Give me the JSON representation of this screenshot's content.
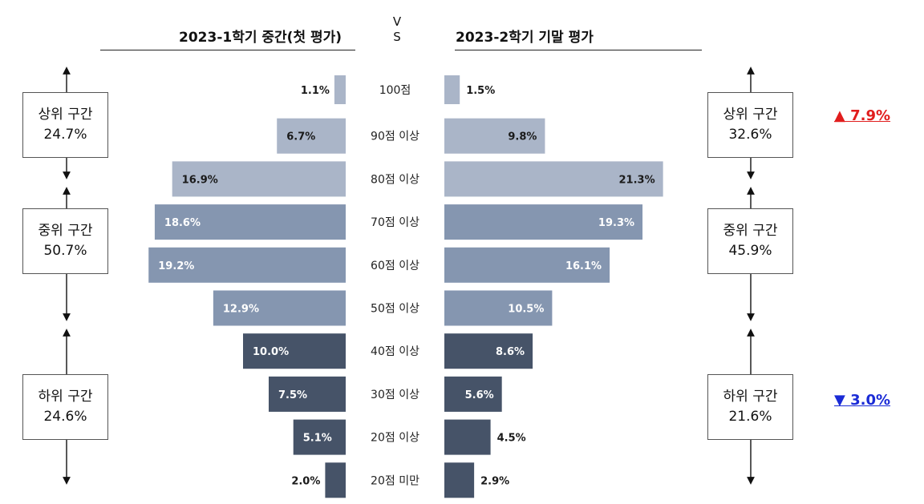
{
  "header": {
    "left_title": "2023-1학기 중간(첫 평가)",
    "right_title": "2023-2학기 기말 평가",
    "vs_top": "V",
    "vs_bottom": "S"
  },
  "groups_left": [
    {
      "label": "상위 구간",
      "value": "24.7%"
    },
    {
      "label": "중위 구간",
      "value": "50.7%"
    },
    {
      "label": "하위 구간",
      "value": "24.6%"
    }
  ],
  "groups_right": [
    {
      "label": "상위 구간",
      "value": "32.6%"
    },
    {
      "label": "중위 구간",
      "value": "45.9%"
    },
    {
      "label": "하위 구간",
      "value": "21.6%"
    }
  ],
  "changes": {
    "top": {
      "text": "▲ 7.9%",
      "color": "#e11d1d"
    },
    "bottom": {
      "text": "▼ 3.0%",
      "color": "#1a2bd6"
    }
  },
  "chart_data": {
    "type": "bar",
    "orientation": "horizontal-butterfly",
    "categories": [
      "100점",
      "90점 이상",
      "80점 이상",
      "70점 이상",
      "60점 이상",
      "50점 이상",
      "40점 이상",
      "30점 이상",
      "20점 이상",
      "20점 미만"
    ],
    "series": [
      {
        "name": "2023-1학기 중간(첫 평가)",
        "values": [
          1.1,
          6.7,
          16.9,
          18.6,
          19.2,
          12.9,
          10.0,
          7.5,
          5.1,
          2.0
        ]
      },
      {
        "name": "2023-2학기 기말 평가",
        "values": [
          1.5,
          9.8,
          21.3,
          19.3,
          16.1,
          10.5,
          8.6,
          5.6,
          4.5,
          2.9
        ]
      }
    ],
    "value_labels": {
      "left": [
        "1.1%",
        "6.7%",
        "16.9%",
        "18.6%",
        "19.2%",
        "12.9%",
        "10.0%",
        "7.5%",
        "5.1%",
        "2.0%"
      ],
      "right": [
        "1.5%",
        "9.8%",
        "21.3%",
        "19.3%",
        "16.1%",
        "10.5%",
        "8.6%",
        "5.6%",
        "4.5%",
        "2.9%"
      ]
    },
    "tier_colors": [
      "#aab5c8",
      "#8596b0",
      "#465368"
    ],
    "tier_of_category": [
      0,
      0,
      0,
      1,
      1,
      1,
      2,
      2,
      2,
      2
    ],
    "label_color_light": "#ffffff",
    "label_color_dark": "#1a1a1a"
  }
}
